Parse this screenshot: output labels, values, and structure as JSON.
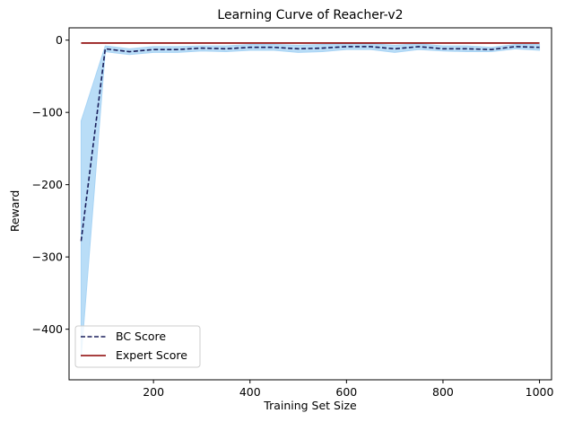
{
  "chart_data": {
    "type": "line",
    "title": "Learning Curve of Reacher-v2",
    "xlabel": "Training Set Size",
    "ylabel": "Reward",
    "xlim": [
      25,
      1025
    ],
    "ylim": [
      -470,
      17
    ],
    "xticks": [
      200,
      400,
      600,
      800,
      1000
    ],
    "yticks": [
      0,
      -100,
      -200,
      -300,
      -400
    ],
    "x": [
      50,
      100,
      150,
      200,
      250,
      300,
      350,
      400,
      450,
      500,
      550,
      600,
      650,
      700,
      750,
      800,
      850,
      900,
      950,
      1000
    ],
    "series": [
      {
        "name": "BC Score",
        "color": "#1a1f5c",
        "style": "dashed",
        "values": [
          -278,
          -12,
          -16,
          -13,
          -13,
          -11,
          -12,
          -10,
          -10,
          -12,
          -11,
          -9,
          -9,
          -12,
          -9,
          -12,
          -12,
          -13,
          -9,
          -10
        ],
        "band_lower": [
          -440,
          -16,
          -20,
          -17,
          -17,
          -15,
          -16,
          -14,
          -14,
          -17,
          -16,
          -13,
          -13,
          -17,
          -13,
          -15,
          -16,
          -16,
          -12,
          -14
        ],
        "band_upper": [
          -112,
          -8,
          -12,
          -9,
          -9,
          -8,
          -8,
          -6,
          -6,
          -7,
          -6,
          -5,
          -5,
          -7,
          -5,
          -8,
          -8,
          -10,
          -6,
          -6
        ],
        "band_color": "#a8d4f5"
      },
      {
        "name": "Expert Score",
        "color": "#8b0000",
        "style": "solid",
        "x": [
          50,
          1000
        ],
        "values": [
          -4,
          -4
        ]
      }
    ],
    "legend_position": "lower-left",
    "grid": false
  }
}
